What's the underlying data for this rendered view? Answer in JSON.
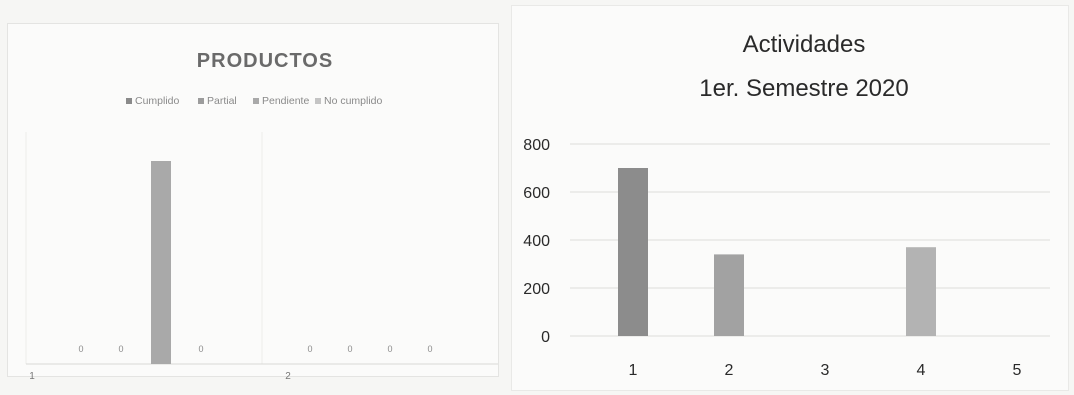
{
  "chart_data": [
    {
      "type": "bar",
      "title": "PRODUCTOS",
      "legend_placement": "top",
      "categories": [
        "1",
        "2"
      ],
      "series": [
        {
          "name": "Cumplido",
          "values": [
            0,
            0
          ],
          "data_labels": [
            "0",
            "0"
          ],
          "color": "#8a8a8a"
        },
        {
          "name": "Partial",
          "values": [
            0,
            0
          ],
          "data_labels": [
            "0",
            "0"
          ],
          "color": "#9c9c9c"
        },
        {
          "name": "Pendiente",
          "values": [
            700,
            0
          ],
          "data_labels": [
            "",
            "0"
          ],
          "color": "#a9a9a9"
        },
        {
          "name": "No cumplido",
          "values": [
            0,
            0
          ],
          "data_labels": [
            "0",
            "0"
          ],
          "color": "#c4c4c4"
        }
      ],
      "grid": false,
      "ylim": [
        0,
        800
      ]
    },
    {
      "type": "bar",
      "title": [
        "Actividades",
        "1er. Semestre 2020"
      ],
      "categories": [
        "1",
        "2",
        "3",
        "4",
        "5"
      ],
      "values": [
        700,
        340,
        0,
        370,
        0
      ],
      "bar_colors": [
        "#8c8c8c",
        "#a2a2a2",
        "#ababab",
        "#b3b3b3",
        "#bdbdbd"
      ],
      "yticks": [
        0,
        200,
        400,
        600,
        800
      ],
      "ylim": [
        0,
        800
      ],
      "grid": true
    }
  ]
}
